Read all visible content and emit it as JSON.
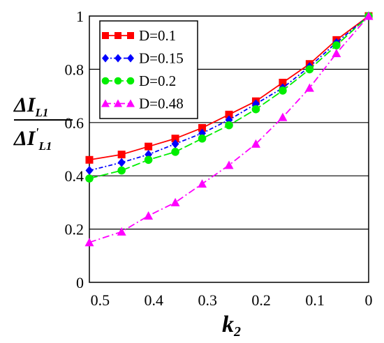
{
  "chart_data": {
    "type": "line",
    "xlabel": "k",
    "xlabel_sub": "2",
    "ylabel_num": "ΔI",
    "ylabel_num_sub": "L1",
    "ylabel_den": "ΔI",
    "ylabel_den_sub": "L1",
    "ylabel_den_prime": "'",
    "xlim": [
      0.52,
      0
    ],
    "ylim": [
      0,
      1
    ],
    "x_ticks": [
      0.5,
      0.4,
      0.3,
      0.2,
      0.1,
      0
    ],
    "x_tick_labels": [
      "0.5",
      "0.4",
      "0.3",
      "0.2",
      "0.1",
      "0"
    ],
    "y_ticks": [
      0,
      0.2,
      0.4,
      0.6,
      0.8,
      1
    ],
    "y_tick_labels": [
      "0",
      "0.2",
      "0.4",
      "0.6",
      "0.8",
      "1"
    ],
    "grid": "horizontal",
    "legend_position": "top-left",
    "series": [
      {
        "name": "D=0.1",
        "color": "#ff0000",
        "marker": "square",
        "dash": "",
        "x": [
          0.52,
          0.46,
          0.41,
          0.36,
          0.31,
          0.26,
          0.21,
          0.16,
          0.11,
          0.06,
          0.0
        ],
        "y": [
          0.46,
          0.48,
          0.51,
          0.54,
          0.58,
          0.63,
          0.68,
          0.75,
          0.82,
          0.91,
          1.0
        ]
      },
      {
        "name": "D=0.15",
        "color": "#0000ff",
        "marker": "diamond",
        "dash": "6 3 2 3",
        "x": [
          0.52,
          0.46,
          0.41,
          0.36,
          0.31,
          0.26,
          0.21,
          0.16,
          0.11,
          0.06,
          0.0
        ],
        "y": [
          0.42,
          0.45,
          0.48,
          0.52,
          0.56,
          0.61,
          0.67,
          0.73,
          0.81,
          0.9,
          1.0
        ]
      },
      {
        "name": "D=0.2",
        "color": "#00ee00",
        "marker": "circle",
        "dash": "12 4",
        "x": [
          0.52,
          0.46,
          0.41,
          0.36,
          0.31,
          0.26,
          0.21,
          0.16,
          0.11,
          0.06,
          0.0
        ],
        "y": [
          0.39,
          0.42,
          0.46,
          0.49,
          0.54,
          0.59,
          0.65,
          0.72,
          0.8,
          0.89,
          1.0
        ]
      },
      {
        "name": "D=0.48",
        "color": "#ff00ff",
        "marker": "triangle",
        "dash": "10 4 2 4",
        "x": [
          0.52,
          0.46,
          0.41,
          0.36,
          0.31,
          0.26,
          0.21,
          0.16,
          0.11,
          0.06,
          0.0
        ],
        "y": [
          0.15,
          0.19,
          0.25,
          0.3,
          0.37,
          0.44,
          0.52,
          0.62,
          0.73,
          0.86,
          1.0
        ]
      }
    ]
  }
}
